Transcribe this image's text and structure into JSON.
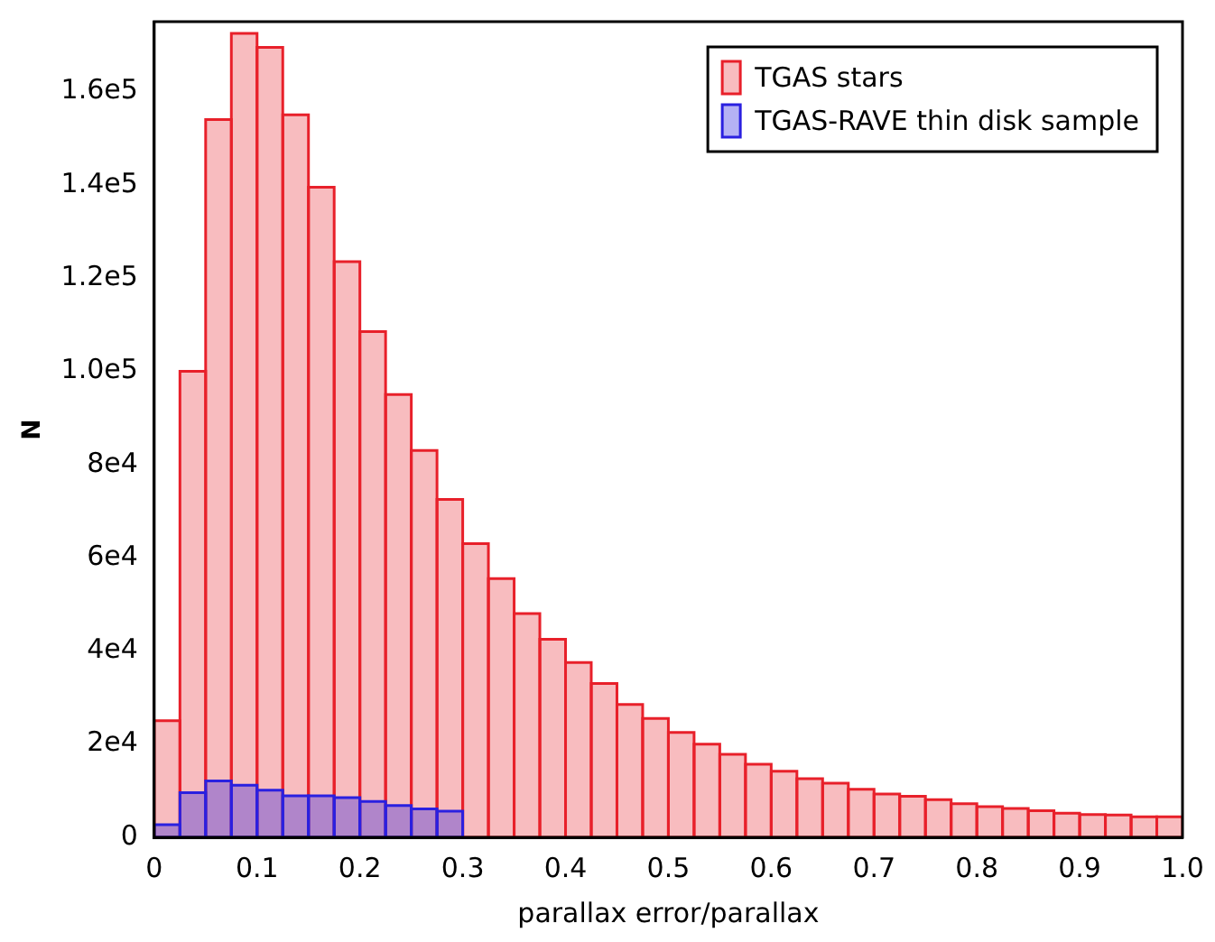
{
  "chart_data": {
    "type": "histogram",
    "xlabel": "parallax error/parallax",
    "ylabel": "N",
    "bins": [
      0,
      0.025,
      0.05,
      0.075,
      0.1,
      0.125,
      0.15,
      0.175,
      0.2,
      0.225,
      0.25,
      0.275,
      0.3,
      0.325,
      0.35,
      0.375,
      0.4,
      0.425,
      0.45,
      0.475,
      0.5,
      0.525,
      0.55,
      0.575,
      0.6,
      0.625,
      0.65,
      0.675,
      0.7,
      0.725,
      0.75,
      0.775,
      0.8,
      0.825,
      0.85,
      0.875,
      0.9,
      0.925,
      0.95,
      0.975,
      1.0
    ],
    "series": [
      {
        "name": "TGAS stars",
        "color": "#e8202a",
        "values": [
          25000,
          100000,
          154000,
          172500,
          169500,
          155000,
          139500,
          123500,
          108500,
          95000,
          83000,
          72500,
          63000,
          55500,
          48000,
          42500,
          37500,
          33000,
          28500,
          25500,
          22500,
          20000,
          17800,
          15700,
          14200,
          12600,
          11600,
          10300,
          9300,
          8800,
          8100,
          7200,
          6600,
          6200,
          5700,
          5200,
          4900,
          4800,
          4400,
          4400
        ]
      },
      {
        "name": "TGAS-RAVE thin disk sample",
        "color": "#2a20e0",
        "values": [
          2700,
          9600,
          12100,
          11200,
          10100,
          8900,
          8900,
          8500,
          7700,
          6800,
          6100,
          5600,
          null,
          null,
          null,
          null,
          null,
          null,
          null,
          null,
          null,
          null,
          null,
          null,
          null,
          null,
          null,
          null,
          null,
          null,
          null,
          null,
          null,
          null,
          null,
          null,
          null,
          null,
          null,
          null
        ]
      }
    ],
    "xlim": [
      0,
      1.0
    ],
    "xticks": [
      0,
      0.1,
      0.2,
      0.3,
      0.4,
      0.5,
      0.6,
      0.7,
      0.8,
      0.9,
      {
        "value": 1,
        "label": "1.0"
      }
    ],
    "ylim": [
      0,
      175000
    ],
    "yticks": [
      0,
      {
        "value": 20000,
        "label": "2e4"
      },
      {
        "value": 40000,
        "label": "4e4"
      },
      {
        "value": 60000,
        "label": "6e4"
      },
      {
        "value": 80000,
        "label": "8e4"
      },
      {
        "value": 100000,
        "label": "1.0e5"
      },
      {
        "value": 120000,
        "label": "1.2e5"
      },
      {
        "value": 140000,
        "label": "1.4e5"
      },
      {
        "value": 160000,
        "label": "1.6e5"
      }
    ],
    "legend": "top right",
    "grid": false
  }
}
